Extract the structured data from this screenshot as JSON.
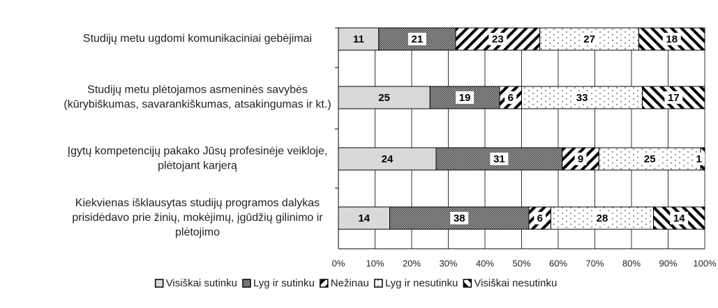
{
  "chart_data": {
    "type": "bar",
    "orientation": "horizontal",
    "stacking": "percent",
    "categories": [
      [
        "Studijų metu ugdomi komunikaciniai gebėjimai"
      ],
      [
        "Studijų metu plėtojamos asmeninės savybės",
        "(kūrybiškumas, savarankiškumas, atsakingumas ir kt.)"
      ],
      [
        "Įgytų kompetencijų pakako Jūsų profesinėje veikloje,",
        "plėtojant karjerą"
      ],
      [
        "Kiekvienas išklausytas studijų programos dalykas",
        "prisidėdavo prie žinių, mokėjimų, įgūdžių gilinimo ir",
        "plėtojimo"
      ]
    ],
    "series": [
      {
        "name": "Visiškai sutinku",
        "color": "#d9d9d9",
        "pattern": "solid",
        "values": [
          11,
          25,
          24,
          14
        ]
      },
      {
        "name": "Lyg ir sutinku",
        "color": "#555555",
        "pattern": "crosshatch",
        "values": [
          21,
          19,
          31,
          38
        ]
      },
      {
        "name": "Nežinau",
        "color": "#000000",
        "pattern": "backslash",
        "values": [
          23,
          6,
          9,
          6
        ]
      },
      {
        "name": "Lyg ir nesutinku",
        "color": "#000000",
        "pattern": "dots",
        "values": [
          27,
          33,
          25,
          28
        ]
      },
      {
        "name": "Visiškai nesutinku",
        "color": "#000000",
        "pattern": "slash",
        "values": [
          18,
          17,
          1,
          14
        ]
      }
    ],
    "xlim": [
      0,
      100
    ],
    "xticks": [
      {
        "value": 0,
        "label": "0%"
      },
      {
        "value": 10,
        "label": "10%"
      },
      {
        "value": 20,
        "label": "20%"
      },
      {
        "value": 30,
        "label": "30%"
      },
      {
        "value": 40,
        "label": "40%"
      },
      {
        "value": 50,
        "label": "50%"
      },
      {
        "value": 60,
        "label": "60%"
      },
      {
        "value": 70,
        "label": "70%"
      },
      {
        "value": 80,
        "label": "80%"
      },
      {
        "value": 90,
        "label": "90%"
      },
      {
        "value": 100,
        "label": "100%"
      }
    ],
    "grid": true,
    "legend": "bottom"
  }
}
